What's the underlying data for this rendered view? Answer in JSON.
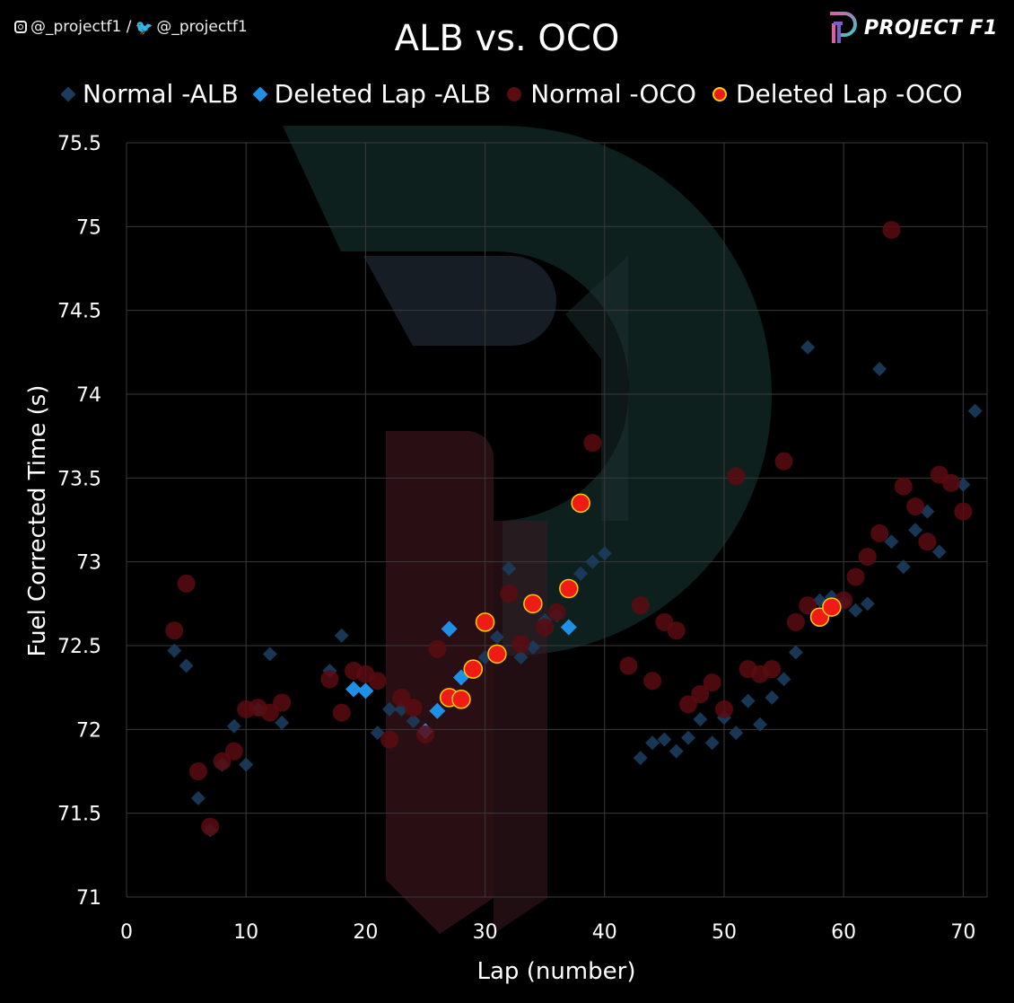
{
  "header": {
    "social_handles": "@_projectf1 / ",
    "social_handle_2": "@_projectf1",
    "brand": "PROJECT F1"
  },
  "colors": {
    "background": "#000000",
    "normal_alb": "#1b3c5e",
    "deleted_alb": "#1e90e6",
    "normal_oco": "#5a0c10",
    "deleted_oco": "#ee1c14",
    "deleted_oco_outline": "#ffcc00",
    "grid": "#3a3a3a"
  },
  "chart_data": {
    "type": "scatter",
    "title": "ALB vs. OCO",
    "xlabel": "Lap (number)",
    "ylabel": "Fuel Corrected Time (s)",
    "xlim": [
      0,
      72
    ],
    "ylim": [
      71,
      75.5
    ],
    "xticks": [
      "0",
      "10",
      "20",
      "30",
      "40",
      "50",
      "60",
      "70"
    ],
    "yticks": [
      "71",
      "71.5",
      "72",
      "72.5",
      "73",
      "73.5",
      "74",
      "74.5",
      "75",
      "75.5"
    ],
    "grid": true,
    "legend_position": "top",
    "series": [
      {
        "name": "Normal -ALB",
        "marker": "diamond",
        "points": [
          [
            4,
            72.47
          ],
          [
            5,
            72.38
          ],
          [
            6,
            71.59
          ],
          [
            7,
            71.4
          ],
          [
            8,
            71.79
          ],
          [
            9,
            72.02
          ],
          [
            10,
            71.79
          ],
          [
            11,
            72.12
          ],
          [
            12,
            72.45
          ],
          [
            13,
            72.04
          ],
          [
            17,
            72.35
          ],
          [
            18,
            72.56
          ],
          [
            21,
            71.98
          ],
          [
            22,
            72.12
          ],
          [
            23,
            72.12
          ],
          [
            24,
            72.05
          ],
          [
            29,
            72.37
          ],
          [
            30,
            72.43
          ],
          [
            31,
            72.55
          ],
          [
            32,
            72.96
          ],
          [
            33,
            72.43
          ],
          [
            34,
            72.49
          ],
          [
            35,
            72.65
          ],
          [
            36,
            72.68
          ],
          [
            38,
            72.93
          ],
          [
            39,
            73.0
          ],
          [
            40,
            73.05
          ],
          [
            43,
            71.83
          ],
          [
            44,
            71.92
          ],
          [
            45,
            71.94
          ],
          [
            46,
            71.87
          ],
          [
            47,
            71.95
          ],
          [
            48,
            72.06
          ],
          [
            49,
            71.92
          ],
          [
            50,
            72.07
          ],
          [
            51,
            71.98
          ],
          [
            52,
            72.17
          ],
          [
            53,
            72.03
          ],
          [
            54,
            72.19
          ],
          [
            55,
            72.3
          ],
          [
            56,
            72.46
          ],
          [
            57,
            74.28
          ],
          [
            58,
            72.77
          ],
          [
            59,
            72.79
          ],
          [
            60,
            72.76
          ],
          [
            61,
            72.71
          ],
          [
            62,
            72.75
          ],
          [
            63,
            74.15
          ],
          [
            64,
            73.12
          ],
          [
            65,
            72.97
          ],
          [
            66,
            73.19
          ],
          [
            67,
            73.3
          ],
          [
            68,
            73.06
          ],
          [
            70,
            73.46
          ],
          [
            71,
            73.9
          ]
        ]
      },
      {
        "name": "Deleted Lap -ALB",
        "marker": "diamond",
        "points": [
          [
            19,
            72.24
          ],
          [
            20,
            72.23
          ],
          [
            25,
            71.99
          ],
          [
            26,
            72.11
          ],
          [
            27,
            72.6
          ],
          [
            28,
            72.31
          ],
          [
            37,
            72.61
          ]
        ]
      },
      {
        "name": "Normal -OCO",
        "marker": "circle",
        "points": [
          [
            4,
            72.59
          ],
          [
            5,
            72.87
          ],
          [
            6,
            71.75
          ],
          [
            7,
            71.42
          ],
          [
            8,
            71.81
          ],
          [
            9,
            71.87
          ],
          [
            10,
            72.12
          ],
          [
            11,
            72.13
          ],
          [
            12,
            72.1
          ],
          [
            13,
            72.16
          ],
          [
            17,
            72.3
          ],
          [
            18,
            72.1
          ],
          [
            19,
            72.35
          ],
          [
            20,
            72.33
          ],
          [
            21,
            72.29
          ],
          [
            22,
            71.94
          ],
          [
            23,
            72.19
          ],
          [
            24,
            72.13
          ],
          [
            25,
            71.97
          ],
          [
            26,
            72.48
          ],
          [
            32,
            72.81
          ],
          [
            33,
            72.51
          ],
          [
            35,
            72.61
          ],
          [
            36,
            72.7
          ],
          [
            39,
            73.71
          ],
          [
            42,
            72.38
          ],
          [
            43,
            72.74
          ],
          [
            44,
            72.29
          ],
          [
            45,
            72.64
          ],
          [
            46,
            72.59
          ],
          [
            47,
            72.15
          ],
          [
            48,
            72.21
          ],
          [
            49,
            72.28
          ],
          [
            50,
            72.12
          ],
          [
            51,
            73.51
          ],
          [
            52,
            72.36
          ],
          [
            53,
            72.33
          ],
          [
            54,
            72.36
          ],
          [
            55,
            73.6
          ],
          [
            56,
            72.64
          ],
          [
            57,
            72.74
          ],
          [
            60,
            72.77
          ],
          [
            61,
            72.91
          ],
          [
            62,
            73.03
          ],
          [
            63,
            73.17
          ],
          [
            64,
            74.98
          ],
          [
            65,
            73.45
          ],
          [
            66,
            73.33
          ],
          [
            67,
            73.12
          ],
          [
            68,
            73.52
          ],
          [
            69,
            73.47
          ],
          [
            70,
            73.3
          ]
        ]
      },
      {
        "name": "Deleted Lap -OCO",
        "marker": "circle",
        "points": [
          [
            27,
            72.19
          ],
          [
            28,
            72.18
          ],
          [
            29,
            72.36
          ],
          [
            30,
            72.64
          ],
          [
            31,
            72.45
          ],
          [
            34,
            72.75
          ],
          [
            37,
            72.84
          ],
          [
            38,
            73.35
          ],
          [
            58,
            72.67
          ],
          [
            59,
            72.73
          ]
        ]
      }
    ]
  }
}
